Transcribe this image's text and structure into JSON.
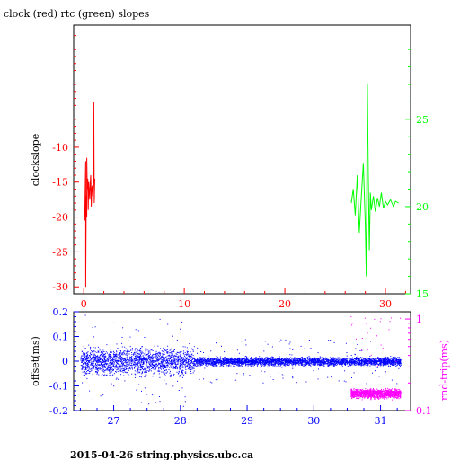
{
  "colors": {
    "clock": "#ff0000",
    "rtc": "#00ff00",
    "offset": "#0000ff",
    "rndtrip": "#ff00ff",
    "frame": "#000000"
  },
  "footer": "2015-04-26 string.physics.ubc.ca",
  "chart_data": [
    {
      "type": "line",
      "title": "clock (red) rtc (green) slopes",
      "ylabel": "clockslope",
      "xlim": [
        -1,
        32.5
      ],
      "ylim": [
        -31,
        7.5
      ],
      "xticks": [
        "0",
        "10",
        "20",
        "30"
      ],
      "xtick_values": [
        0,
        10,
        20,
        30
      ],
      "yticks": [
        "-10",
        "-15",
        "-20",
        "-25",
        "-30"
      ],
      "ytick_values": [
        -10,
        -15,
        -20,
        -25,
        -30
      ],
      "y2lim": [
        15,
        30.4
      ],
      "y2ticks": [
        "15",
        "20",
        "25"
      ],
      "y2tick_values": [
        15,
        20,
        25
      ],
      "series": [
        {
          "name": "clock",
          "x": [
            0.1,
            0.15,
            0.2,
            0.2,
            0.25,
            0.3,
            0.3,
            0.35,
            0.4,
            0.45,
            0.5,
            0.55,
            0.6,
            0.65,
            0.7,
            0.75,
            0.8,
            0.85,
            0.9,
            0.95,
            1.0,
            1.05,
            1.1
          ],
          "y": [
            -20.5,
            -15.5,
            -12.0,
            -30.0,
            -17.0,
            -20.0,
            -11.5,
            -16.0,
            -14.5,
            -19.0,
            -15.0,
            -16.5,
            -17.5,
            -15.0,
            -14.0,
            -18.5,
            -16.0,
            -15.5,
            -17.0,
            -15.0,
            -3.5,
            -18.0,
            -14.5
          ]
        },
        {
          "name": "rtc",
          "x": [
            26.6,
            26.8,
            27.0,
            27.2,
            27.4,
            27.6,
            27.8,
            28.0,
            28.1,
            28.2,
            28.3,
            28.4,
            28.5,
            28.6,
            28.8,
            29.0,
            29.2,
            29.4,
            29.6,
            29.8,
            30.0,
            30.2,
            30.5,
            30.8,
            31.0,
            31.3
          ],
          "y": [
            20.2,
            21.0,
            19.5,
            21.8,
            18.5,
            20.5,
            22.5,
            19.0,
            16.0,
            27.0,
            21.5,
            17.5,
            20.8,
            19.8,
            20.6,
            19.7,
            20.5,
            20.0,
            20.8,
            19.9,
            20.3,
            20.1,
            20.4,
            20.0,
            20.3,
            20.2
          ]
        }
      ]
    },
    {
      "type": "scatter",
      "ylabel": "offset(ms)",
      "y2label": "rnd-trip(ms)",
      "xlim": [
        26.4,
        31.45
      ],
      "ylim": [
        -0.2,
        0.2
      ],
      "xticks": [
        "27",
        "28",
        "29",
        "30",
        "31"
      ],
      "xtick_values": [
        27,
        28,
        29,
        30,
        31
      ],
      "yticks": [
        "0.2",
        "0.1",
        "0",
        "-0.1",
        "-0.2"
      ],
      "ytick_values": [
        0.2,
        0.1,
        0,
        -0.1,
        -0.2
      ],
      "y2scale": "log",
      "y2lim": [
        0.1,
        1.2
      ],
      "y2ticks": [
        "1",
        "0.1"
      ],
      "y2tick_values": [
        1,
        0.1
      ],
      "series": [
        {
          "name": "offset",
          "x_range": [
            26.5,
            31.3
          ],
          "y_center": 0,
          "spread_early": 0.1,
          "spread_late": 0.03
        },
        {
          "name": "rnd-trip",
          "x_range": [
            30.55,
            31.3
          ],
          "y_center": 0.155,
          "spread": 0.03
        }
      ]
    }
  ]
}
